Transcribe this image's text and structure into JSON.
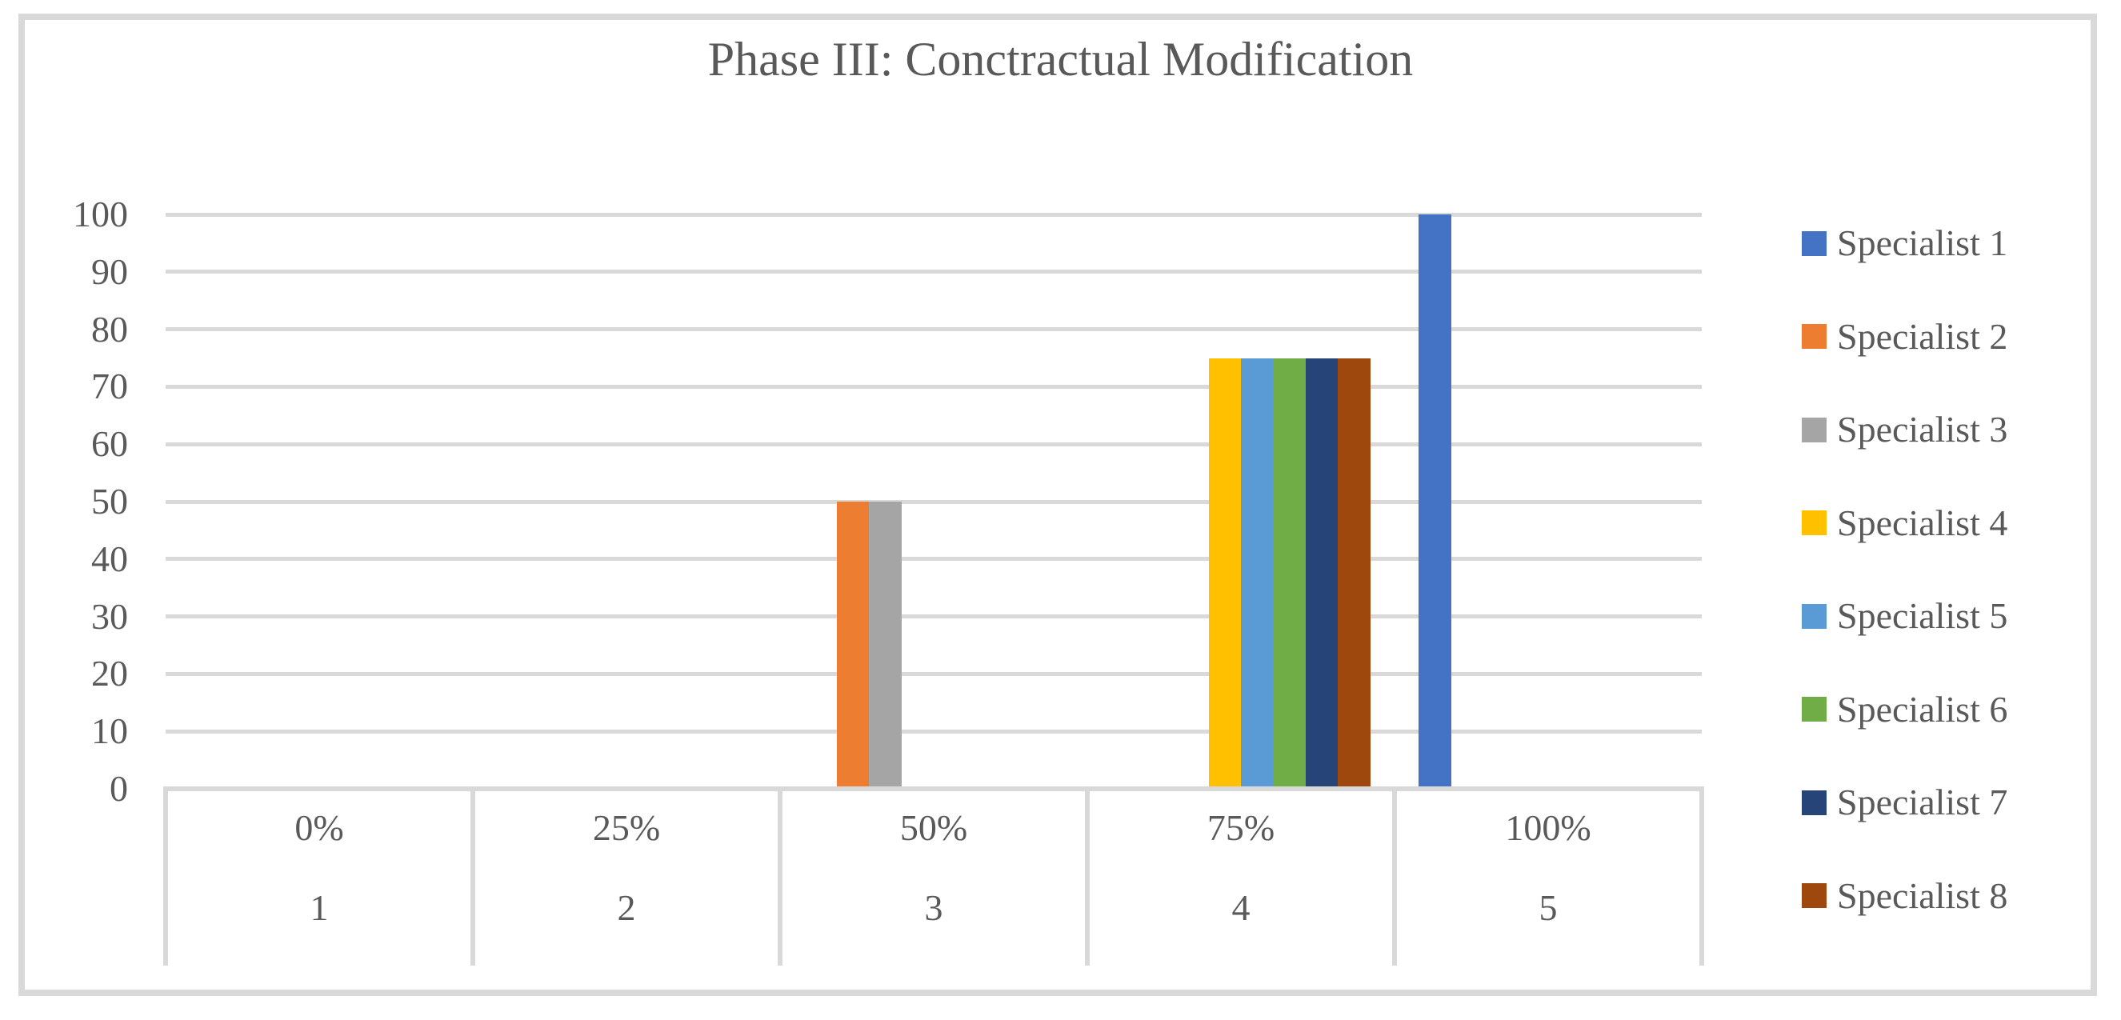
{
  "chart_data": {
    "type": "bar",
    "title": "Phase III: Conctractual Modification",
    "categories_percent": [
      "0%",
      "25%",
      "50%",
      "75%",
      "100%"
    ],
    "categories_number": [
      "1",
      "2",
      "3",
      "4",
      "5"
    ],
    "y_tick_labels": [
      "0",
      "10",
      "20",
      "30",
      "40",
      "50",
      "60",
      "70",
      "80",
      "90",
      "100"
    ],
    "ylim": [
      0,
      100
    ],
    "ytick_step": 10,
    "grid": true,
    "legend_position": "right",
    "series": [
      {
        "name": "Specialist 1",
        "color": "#4472C4",
        "values": [
          0,
          0,
          0,
          0,
          100
        ]
      },
      {
        "name": "Specialist 2",
        "color": "#ED7D31",
        "values": [
          0,
          0,
          50,
          0,
          0
        ]
      },
      {
        "name": "Specialist 3",
        "color": "#A5A5A5",
        "values": [
          0,
          0,
          50,
          0,
          0
        ]
      },
      {
        "name": "Specialist 4",
        "color": "#FFC000",
        "values": [
          0,
          0,
          0,
          75,
          0
        ]
      },
      {
        "name": "Specialist 5",
        "color": "#5B9BD5",
        "values": [
          0,
          0,
          0,
          75,
          0
        ]
      },
      {
        "name": "Specialist 6",
        "color": "#70AD47",
        "values": [
          0,
          0,
          0,
          75,
          0
        ]
      },
      {
        "name": "Specialist 7",
        "color": "#264478",
        "values": [
          0,
          0,
          0,
          75,
          0
        ]
      },
      {
        "name": "Specialist 8",
        "color": "#9E480E",
        "values": [
          0,
          0,
          0,
          75,
          0
        ]
      }
    ],
    "colors": {
      "grid": "#D9D9D9",
      "border": "#D9D9D9",
      "text": "#595959"
    }
  }
}
